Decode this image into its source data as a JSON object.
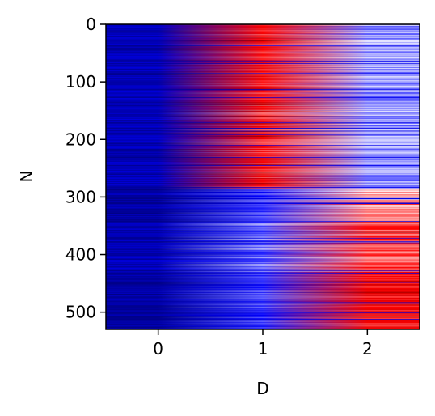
{
  "chart_data": {
    "type": "heatmap",
    "title": "",
    "xlabel": "D",
    "ylabel": "N",
    "colormap": "seismic",
    "xlim": [
      -0.5,
      2.5
    ],
    "ylim": [
      530,
      0
    ],
    "n_rows": 530,
    "n_cols": 3,
    "x_ticks": [
      0,
      1,
      2
    ],
    "y_ticks": [
      0,
      100,
      200,
      300,
      400,
      500
    ],
    "x_tick_labels": [
      "0",
      "1",
      "2"
    ],
    "y_tick_labels": [
      "0",
      "100",
      "200",
      "300",
      "400",
      "500"
    ],
    "row_groups": [
      {
        "rows": [
          0,
          285
        ],
        "peak_column": 1,
        "description_values": {
          "col0": -0.8,
          "col1": 0.45,
          "col2": -0.2
        }
      },
      {
        "rows": [
          285,
          345
        ],
        "peak_column": 2,
        "description_values": {
          "col0": -0.9,
          "col1": -0.4,
          "col2": 0.15
        }
      },
      {
        "rows": [
          345,
          430
        ],
        "peak_column": 2,
        "description_values": {
          "col0": -0.8,
          "col1": -0.3,
          "col2": 0.35
        }
      },
      {
        "rows": [
          430,
          530
        ],
        "peak_column": 2,
        "description_values": {
          "col0": -0.9,
          "col1": -0.4,
          "col2": 0.5
        }
      }
    ],
    "value_range": [
      -1,
      1
    ],
    "grid": false,
    "legend": "none"
  }
}
